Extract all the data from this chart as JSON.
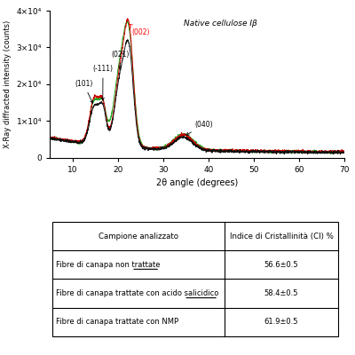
{
  "title": "Native cellulose Iβ",
  "xlabel": "2θ angle (degrees)",
  "ylabel": "X-Ray diffracted intensity (counts)",
  "xlim": [
    5,
    70
  ],
  "ylim": [
    0,
    40000
  ],
  "yticks": [
    0,
    10000,
    20000,
    30000,
    40000
  ],
  "ytick_labels": [
    "0",
    "1×10⁴",
    "2×10⁴",
    "3×10⁴",
    "4×10⁴"
  ],
  "table_headers": [
    "Campione analizzato",
    "Indice di Cristallinità (CI) %"
  ],
  "table_rows": [
    [
      "Fibre di canapa non trattate",
      "56.6±0.5"
    ],
    [
      "Fibre di canapa trattate con acido salicidico",
      "58.4±0.5"
    ],
    [
      "Fibre di canapa trattate con NMP",
      "61.9±0.5"
    ]
  ]
}
